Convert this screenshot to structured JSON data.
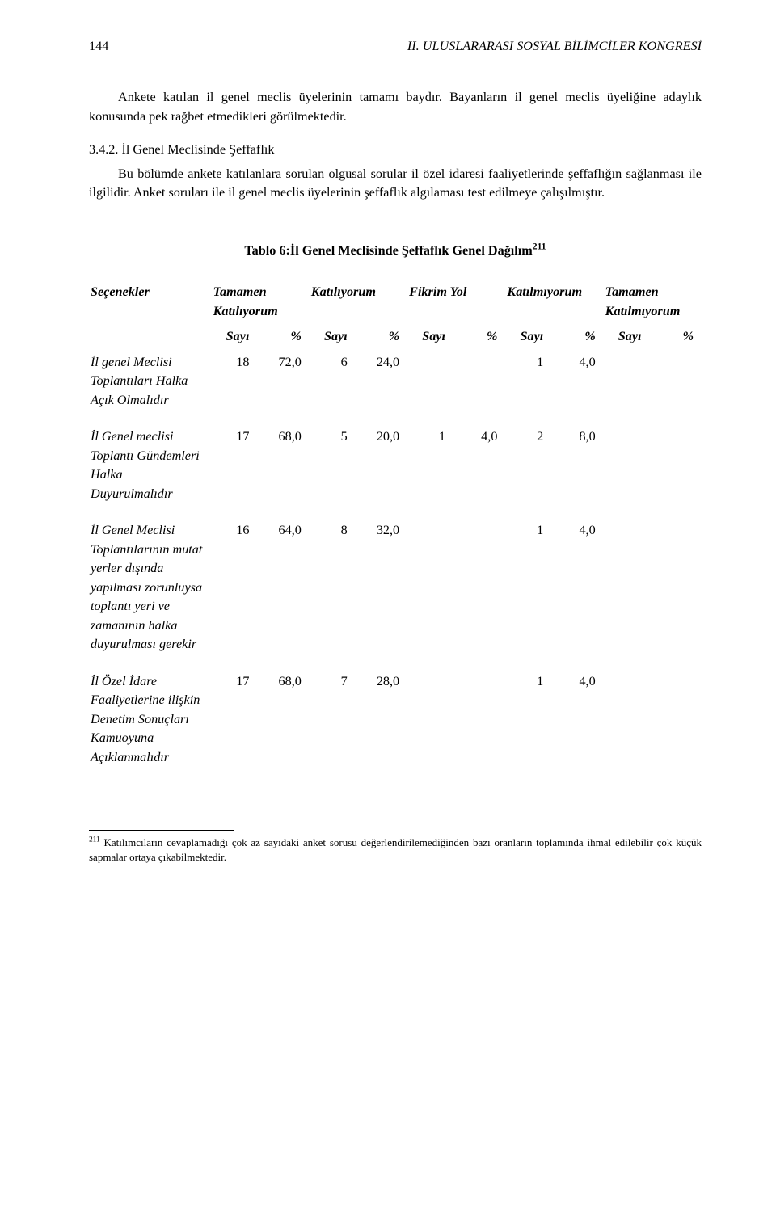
{
  "header": {
    "page_number": "144",
    "running_title": "II. ULUSLARARASI SOSYAL BİLİMCİLER KONGRESİ"
  },
  "paragraphs": {
    "p1": "Ankete katılan il genel meclis üyelerinin tamamı baydır. Bayanların il genel meclis üyeliğine adaylık konusunda pek rağbet etmedikleri görülmektedir.",
    "sec_heading": "3.4.2. İl Genel Meclisinde Şeffaflık",
    "p2": "Bu bölümde ankete katılanlara sorulan olgusal sorular il özel idaresi faaliyetlerinde şeffaflığın sağlanması ile ilgilidir. Anket soruları ile il genel meclis üyelerinin şeffaflık algılaması test edilmeye çalışılmıştır."
  },
  "table": {
    "title_prefix": "Tablo 6:İl Genel Meclisinde Şeffaflık Genel Dağılım",
    "footnote_mark": "211",
    "head_row1": {
      "c0": "Seçenekler",
      "c1": "Tamamen Katılıyorum",
      "c2": "Katılıyorum",
      "c3": "Fikrim Yol",
      "c4": "Katılmıyorum",
      "c5": "Tamamen Katılmıyorum"
    },
    "head_row2": {
      "sayi": "Sayı",
      "pct": "%"
    },
    "rows": [
      {
        "label": "İl genel Meclisi Toplantıları Halka Açık Olmalıdır",
        "cells": [
          "18",
          "72,0",
          "6",
          "24,0",
          "",
          "",
          "1",
          "4,0",
          "",
          ""
        ]
      },
      {
        "label": "İl Genel meclisi Toplantı Gündemleri Halka Duyurulmalıdır",
        "cells": [
          "17",
          "68,0",
          "5",
          "20,0",
          "1",
          "4,0",
          "2",
          "8,0",
          "",
          ""
        ]
      },
      {
        "label": "İl Genel Meclisi Toplantılarının mutat yerler dışında yapılması zorunluysa toplantı yeri ve zamanının halka duyurulması gerekir",
        "cells": [
          "16",
          "64,0",
          "8",
          "32,0",
          "",
          "",
          "1",
          "4,0",
          "",
          ""
        ]
      },
      {
        "label": "İl Özel İdare Faaliyetlerine ilişkin Denetim Sonuçları Kamuoyuna Açıklanmalıdır",
        "cells": [
          "17",
          "68,0",
          "7",
          "28,0",
          "",
          "",
          "1",
          "4,0",
          "",
          ""
        ]
      }
    ]
  },
  "footnote": {
    "mark": "211",
    "text": " Katılımcıların cevaplamadığı çok az sayıdaki anket sorusu değerlendirilemediğinden bazı oranların toplamında ihmal edilebilir çok küçük sapmalar ortaya çıkabilmektedir."
  }
}
